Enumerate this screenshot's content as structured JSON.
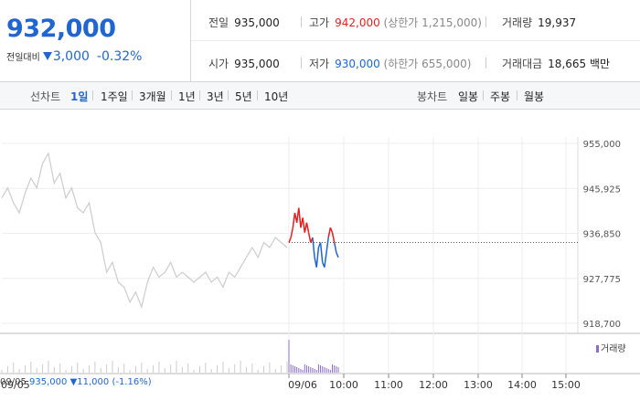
{
  "price": {
    "current": "932,000",
    "diff_label": "전일대비",
    "diff_value": "3,000",
    "diff_pct": "-0.32%",
    "direction": "down"
  },
  "stats": {
    "prev_close": {
      "label": "전일",
      "value": "935,000"
    },
    "high": {
      "label": "고가",
      "value": "942,000",
      "limit_label": "(상한가 1,215,000)"
    },
    "volume": {
      "label": "거래량",
      "value": "19,937"
    },
    "open": {
      "label": "시가",
      "value": "935,000"
    },
    "low": {
      "label": "저가",
      "value": "930,000",
      "limit_label": "(하한가 655,000)"
    },
    "amount": {
      "label": "거래대금",
      "value": "18,665",
      "unit": "백만"
    }
  },
  "tabs": {
    "line_label": "선차트",
    "line_items": [
      "1일",
      "1주일",
      "3개월",
      "1년",
      "3년",
      "5년",
      "10년"
    ],
    "active": "1일",
    "candle_label": "봉차트",
    "candle_items": [
      "일봉",
      "주봉",
      "월봉"
    ]
  },
  "chart_data": {
    "type": "line",
    "y_ticks": [
      "955,000",
      "945,925",
      "936,850",
      "927,775",
      "918,700"
    ],
    "ylim": [
      918700,
      955000
    ],
    "x_ticks": [
      "09/06",
      "10:00",
      "11:00",
      "12:00",
      "13:00",
      "14:00",
      "15:00"
    ],
    "x_left_label": "09/05",
    "prev_close": 935000,
    "prev_day_series": [
      944000,
      946000,
      943000,
      941000,
      945000,
      948000,
      946000,
      951000,
      953000,
      947000,
      949000,
      944000,
      946000,
      942000,
      941000,
      943000,
      937000,
      935000,
      929000,
      931000,
      927000,
      926000,
      923000,
      925000,
      922000,
      927000,
      930000,
      928000,
      929000,
      931000,
      928000,
      929000,
      928000,
      927000,
      928000,
      929000,
      927000,
      928000,
      926000,
      929000,
      928000,
      930000,
      932000,
      934000,
      932000,
      935000,
      934000,
      936000,
      935000,
      934000
    ],
    "today_series": [
      935000,
      936000,
      938000,
      941000,
      939000,
      942000,
      938000,
      940000,
      937000,
      939000,
      937000,
      935000,
      936000,
      932000,
      930000,
      934000,
      935000,
      931000,
      930000,
      933000,
      936000,
      938000,
      937000,
      935000,
      933000,
      932000
    ],
    "volume_legend": "거래량"
  },
  "bottom": {
    "date": "09/05",
    "close": "935,000",
    "change": "▼11,000",
    "change_pct": "(-1.16%)"
  },
  "colors": {
    "up": "#e51f1f",
    "down": "#1f66d1",
    "accent": "#1f66d1"
  }
}
